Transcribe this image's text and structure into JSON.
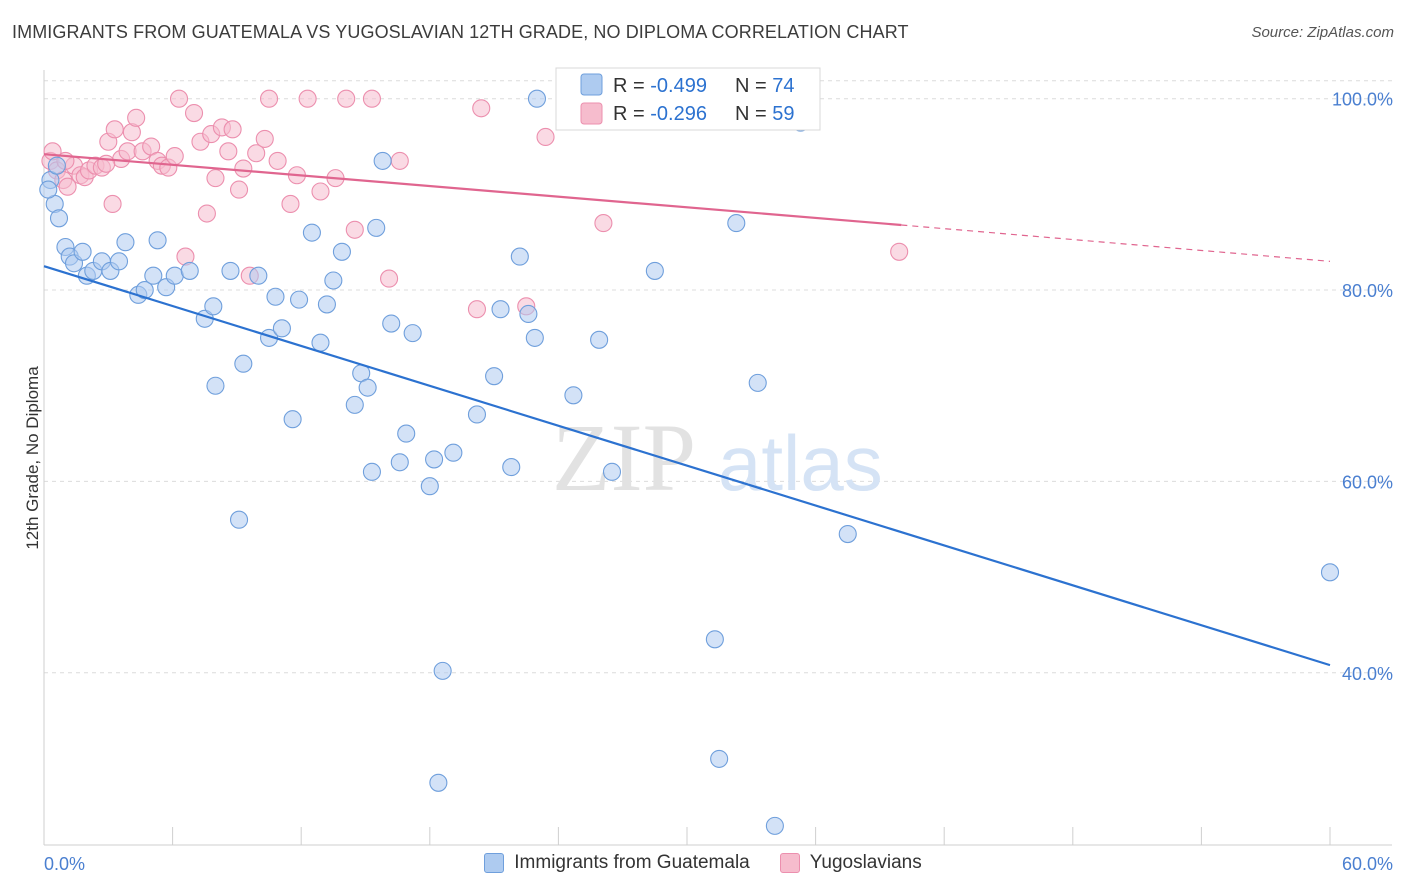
{
  "title": "IMMIGRANTS FROM GUATEMALA VS YUGOSLAVIAN 12TH GRADE, NO DIPLOMA CORRELATION CHART",
  "source": "Source: ZipAtlas.com",
  "watermark": {
    "zip": "ZIP",
    "atlas": "atlas"
  },
  "colors": {
    "blue_fill": "#aecbf0",
    "blue_stroke": "#6f9fdc",
    "blue_line": "#2c72d0",
    "pink_fill": "#f6bccd",
    "pink_stroke": "#ec8fae",
    "pink_line": "#e0658f",
    "tick_text": "#4a7fd0",
    "grid": "#dcdcdc"
  },
  "legend": {
    "rows": [
      {
        "r_label": "R = ",
        "r_value": "-0.499",
        "n_label": "N = ",
        "n_value": "74"
      },
      {
        "r_label": "R = ",
        "r_value": "-0.296",
        "n_label": "N = ",
        "n_value": "59"
      }
    ]
  },
  "chart_data": {
    "type": "scatter",
    "xlabel": "",
    "ylabel": "12th Grade, No Diploma",
    "xlim": [
      0,
      60
    ],
    "ylim": [
      22,
      103
    ],
    "x_tick_labels": [
      "0.0%",
      "60.0%"
    ],
    "y_ticks": [
      40,
      60,
      80,
      100
    ],
    "y_tick_labels": [
      "40.0%",
      "60.0%",
      "80.0%",
      "100.0%"
    ],
    "grid": true,
    "legend_position": "top-center",
    "series": [
      {
        "name": "Immigrants from Guatemala",
        "color": "blue",
        "trend": {
          "x0": 0,
          "y0": 82.5,
          "x1": 60,
          "y1": 40.8
        },
        "points": [
          [
            0.3,
            91.5
          ],
          [
            0.5,
            89
          ],
          [
            0.7,
            87.5
          ],
          [
            1.0,
            84.5
          ],
          [
            1.2,
            83.5
          ],
          [
            1.4,
            82.8
          ],
          [
            1.8,
            84
          ],
          [
            2.0,
            81.5
          ],
          [
            2.3,
            82
          ],
          [
            2.7,
            83
          ],
          [
            3.1,
            82
          ],
          [
            3.5,
            83
          ],
          [
            3.8,
            85
          ],
          [
            4.4,
            79.5
          ],
          [
            4.7,
            80
          ],
          [
            5.1,
            81.5
          ],
          [
            5.3,
            85.2
          ],
          [
            5.7,
            80.3
          ],
          [
            6.1,
            81.5
          ],
          [
            6.8,
            82
          ],
          [
            7.5,
            77
          ],
          [
            7.9,
            78.3
          ],
          [
            8.0,
            70
          ],
          [
            8.7,
            82
          ],
          [
            9.1,
            56
          ],
          [
            9.3,
            72.3
          ],
          [
            10.0,
            81.5
          ],
          [
            10.5,
            75
          ],
          [
            10.8,
            79.3
          ],
          [
            11.1,
            76
          ],
          [
            11.6,
            66.5
          ],
          [
            11.9,
            79
          ],
          [
            12.5,
            86
          ],
          [
            12.9,
            74.5
          ],
          [
            13.2,
            78.5
          ],
          [
            13.5,
            81
          ],
          [
            13.9,
            84
          ],
          [
            14.5,
            68
          ],
          [
            14.8,
            71.3
          ],
          [
            15.1,
            69.8
          ],
          [
            15.3,
            61
          ],
          [
            15.5,
            86.5
          ],
          [
            15.8,
            93.5
          ],
          [
            16.2,
            76.5
          ],
          [
            16.6,
            62
          ],
          [
            16.9,
            65
          ],
          [
            17.2,
            75.5
          ],
          [
            18.0,
            59.5
          ],
          [
            18.2,
            62.3
          ],
          [
            18.4,
            28.5
          ],
          [
            18.6,
            40.2
          ],
          [
            19.1,
            63
          ],
          [
            20.2,
            67
          ],
          [
            21.0,
            71
          ],
          [
            21.3,
            78
          ],
          [
            21.8,
            61.5
          ],
          [
            22.2,
            83.5
          ],
          [
            22.6,
            77.5
          ],
          [
            22.9,
            75
          ],
          [
            23.0,
            100
          ],
          [
            24.7,
            69
          ],
          [
            25.9,
            74.8
          ],
          [
            26.5,
            61
          ],
          [
            28.5,
            82
          ],
          [
            31.3,
            43.5
          ],
          [
            31.5,
            31
          ],
          [
            32.3,
            87
          ],
          [
            33.3,
            70.3
          ],
          [
            34.1,
            24
          ],
          [
            35.3,
            97.5
          ],
          [
            37.5,
            54.5
          ],
          [
            60.0,
            50.5
          ],
          [
            0.6,
            93
          ],
          [
            0.2,
            90.5
          ]
        ]
      },
      {
        "name": "Yugoslavians",
        "color": "pink",
        "trend": {
          "x0": 0,
          "y0": 94.2,
          "x1": 40,
          "y1": 86.8,
          "dash_x1": 60,
          "dash_y1": 83.0
        },
        "points": [
          [
            0.3,
            93.5
          ],
          [
            0.6,
            92.5
          ],
          [
            0.9,
            91.5
          ],
          [
            1.1,
            90.8
          ],
          [
            1.4,
            93
          ],
          [
            1.7,
            92
          ],
          [
            1.9,
            91.8
          ],
          [
            2.1,
            92.5
          ],
          [
            2.4,
            93
          ],
          [
            2.7,
            92.8
          ],
          [
            3.0,
            95.5
          ],
          [
            3.3,
            96.8
          ],
          [
            3.6,
            93.7
          ],
          [
            3.9,
            94.5
          ],
          [
            4.1,
            96.5
          ],
          [
            4.3,
            98
          ],
          [
            4.6,
            94.5
          ],
          [
            5.0,
            95
          ],
          [
            5.3,
            93.5
          ],
          [
            5.5,
            93
          ],
          [
            5.8,
            92.8
          ],
          [
            6.1,
            94
          ],
          [
            6.3,
            100
          ],
          [
            6.6,
            83.5
          ],
          [
            7.0,
            98.5
          ],
          [
            7.3,
            95.5
          ],
          [
            7.6,
            88
          ],
          [
            7.8,
            96.3
          ],
          [
            8.0,
            91.7
          ],
          [
            8.3,
            97
          ],
          [
            8.6,
            94.5
          ],
          [
            8.8,
            96.8
          ],
          [
            9.1,
            90.5
          ],
          [
            9.3,
            92.7
          ],
          [
            9.6,
            81.5
          ],
          [
            9.9,
            94.3
          ],
          [
            10.3,
            95.8
          ],
          [
            10.5,
            100
          ],
          [
            10.9,
            93.5
          ],
          [
            11.5,
            89
          ],
          [
            11.8,
            92
          ],
          [
            12.3,
            100
          ],
          [
            12.9,
            90.3
          ],
          [
            13.6,
            91.7
          ],
          [
            14.1,
            100
          ],
          [
            14.5,
            86.3
          ],
          [
            15.3,
            100
          ],
          [
            16.1,
            81.2
          ],
          [
            16.6,
            93.5
          ],
          [
            20.2,
            78
          ],
          [
            20.4,
            99
          ],
          [
            23.4,
            96
          ],
          [
            26.1,
            87
          ],
          [
            39.9,
            84
          ],
          [
            22.5,
            78.3
          ],
          [
            3.2,
            89
          ],
          [
            1.0,
            93.5
          ],
          [
            0.4,
            94.5
          ],
          [
            2.9,
            93.2
          ]
        ]
      }
    ]
  }
}
